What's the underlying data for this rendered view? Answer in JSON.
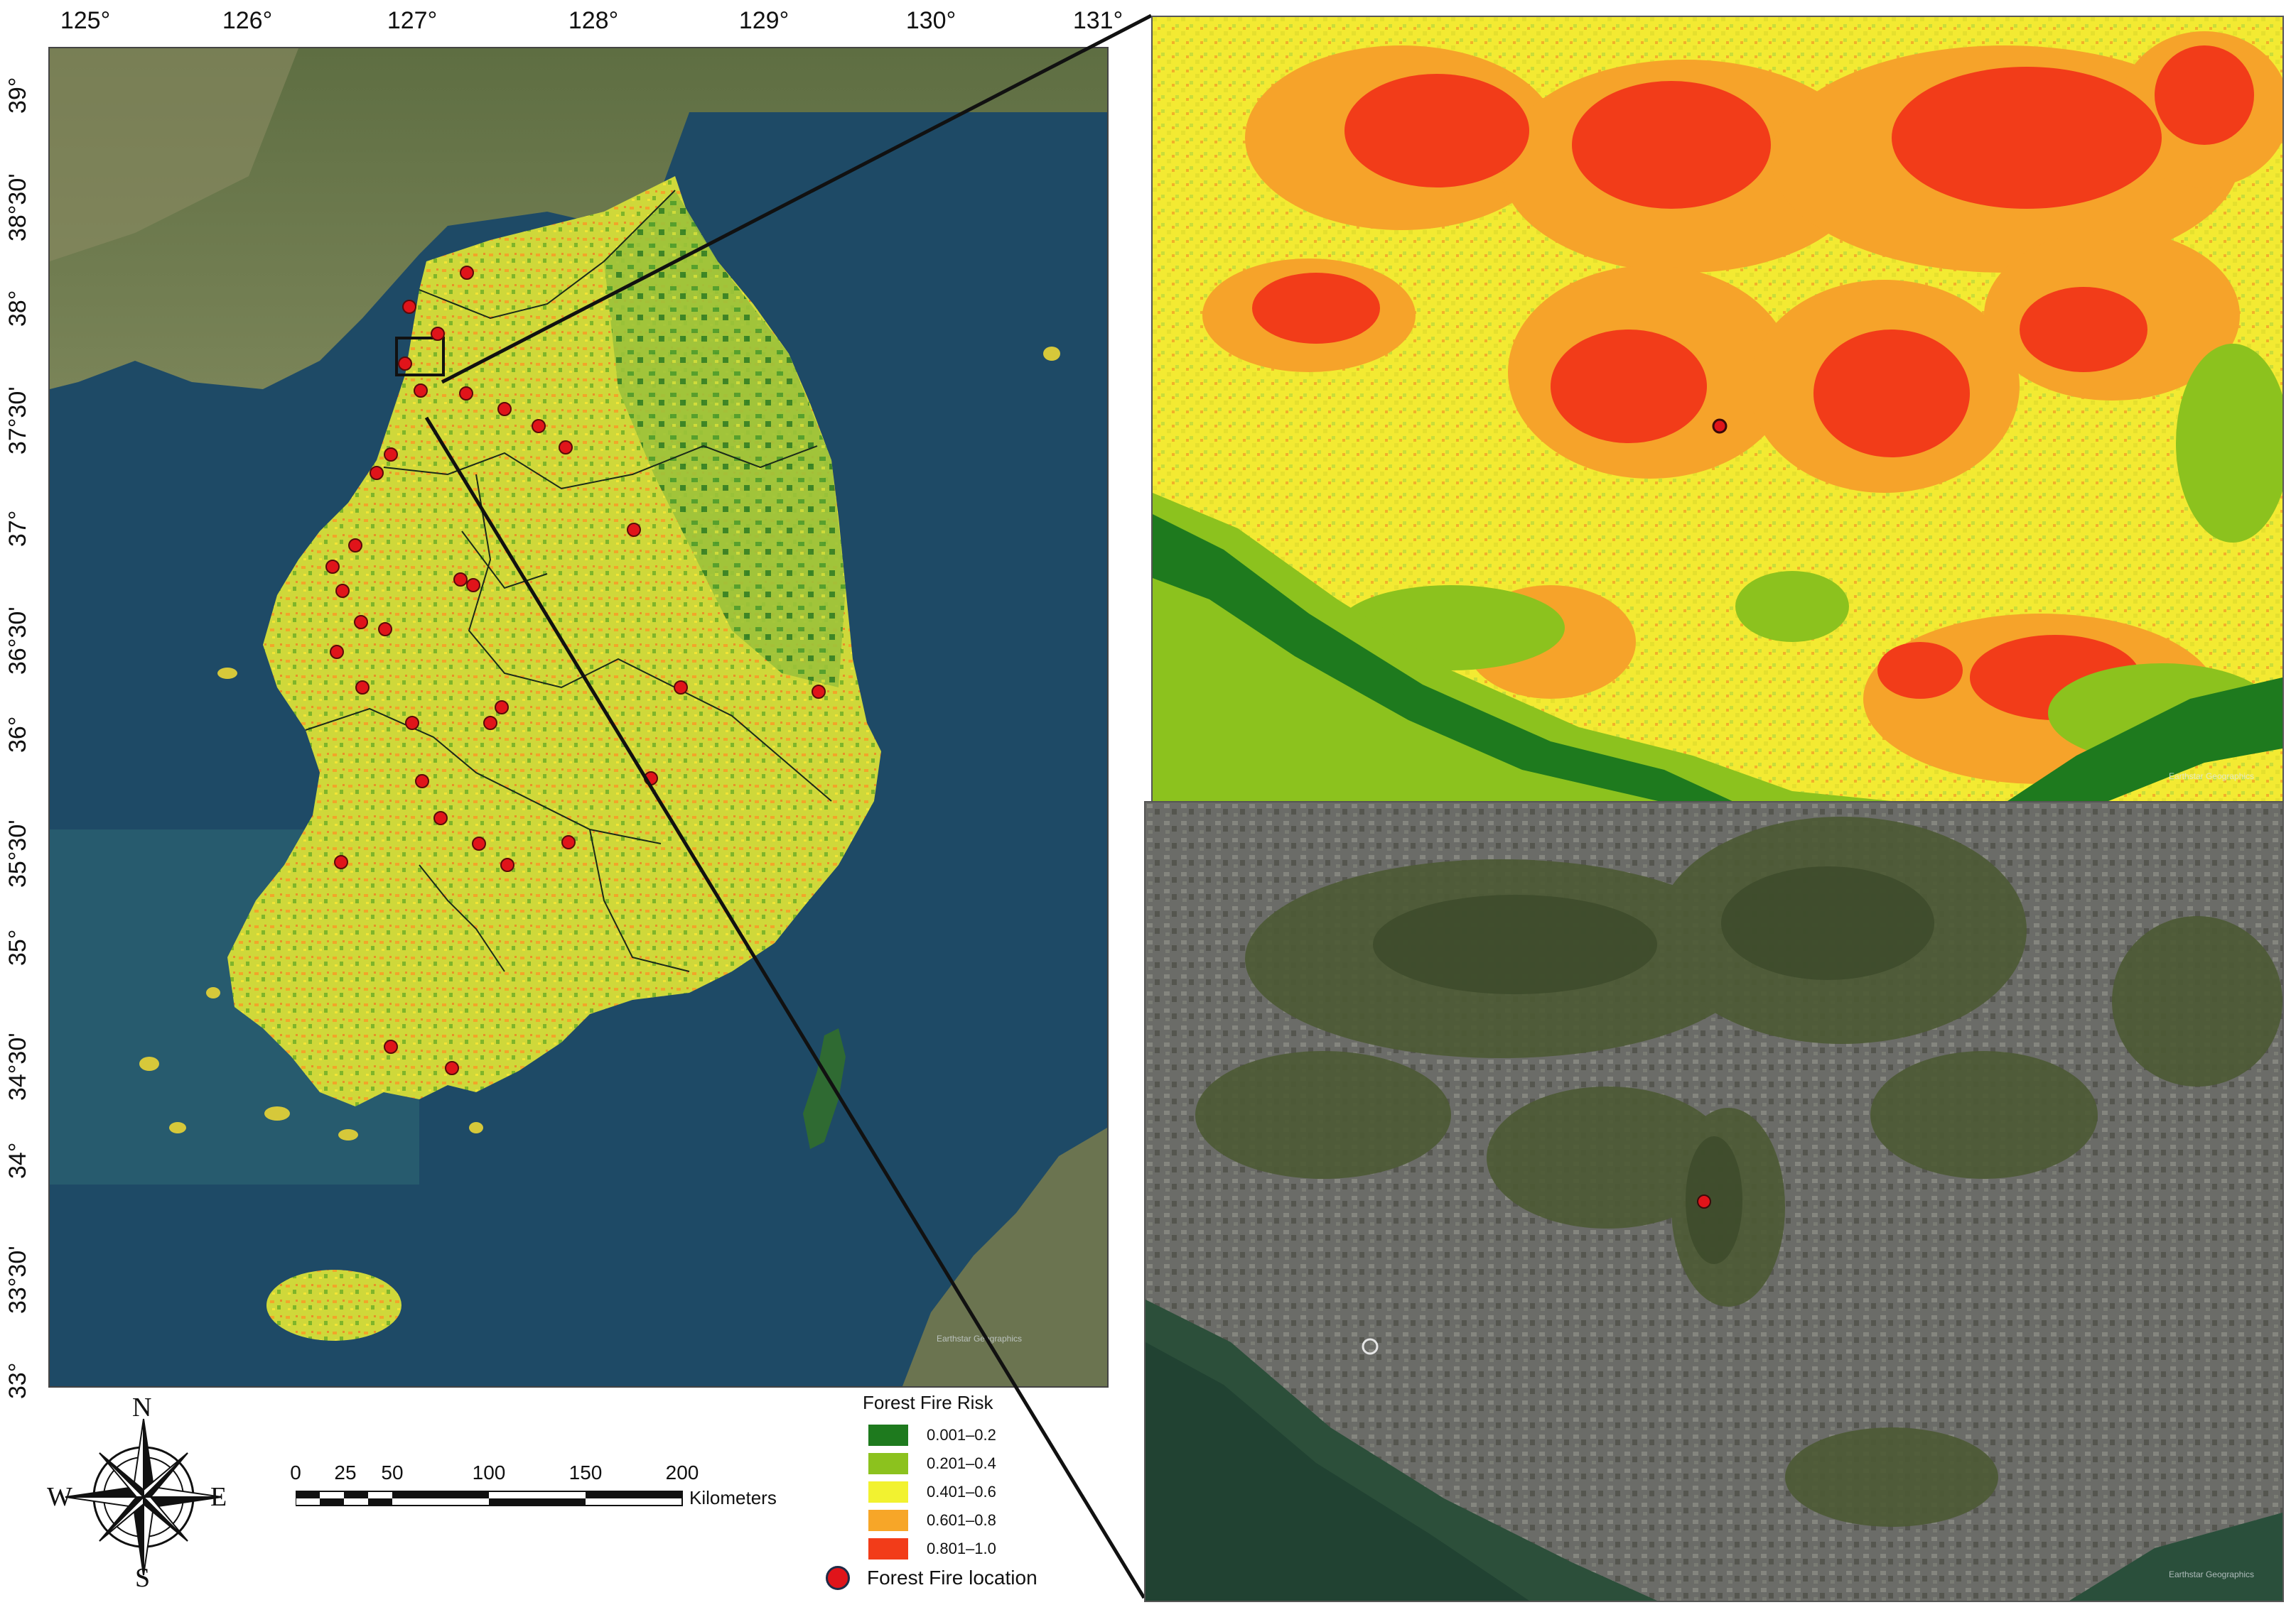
{
  "longitude_labels": [
    "125°",
    "126°",
    "127°",
    "128°",
    "129°",
    "130°",
    "131°"
  ],
  "latitude_labels": [
    "39°",
    "38°30'",
    "38°",
    "37°30'",
    "37°",
    "36°30'",
    "36°",
    "35°30'",
    "35°",
    "34°30'",
    "34°",
    "33°30'",
    "33°"
  ],
  "compass": {
    "north": "N",
    "south": "S",
    "east": "E",
    "west": "W"
  },
  "scale_bar": {
    "ticks": [
      "0",
      "25",
      "50",
      "100",
      "150",
      "200"
    ],
    "unit": "Kilometers"
  },
  "legend": {
    "title": "Forest Fire Risk",
    "classes": [
      {
        "label": "0.001–0.2",
        "color": "#1e7a1e"
      },
      {
        "label": "0.201–0.4",
        "color": "#8cc21e"
      },
      {
        "label": "0.401–0.6",
        "color": "#f2f230"
      },
      {
        "label": "0.601–0.8",
        "color": "#f7a628"
      },
      {
        "label": "0.801–1.0",
        "color": "#f23c19"
      }
    ],
    "fire_location_label": "Forest Fire location"
  },
  "credits": {
    "risk_panel": "Earthstar Geographics",
    "satellite_panel": "Earthstar Geographics",
    "main_map": "Earthstar Geographics"
  },
  "colors": {
    "sea": "#1d4966",
    "fire_point": "#e0141a",
    "north_korea_land": "#6b7a4a"
  }
}
